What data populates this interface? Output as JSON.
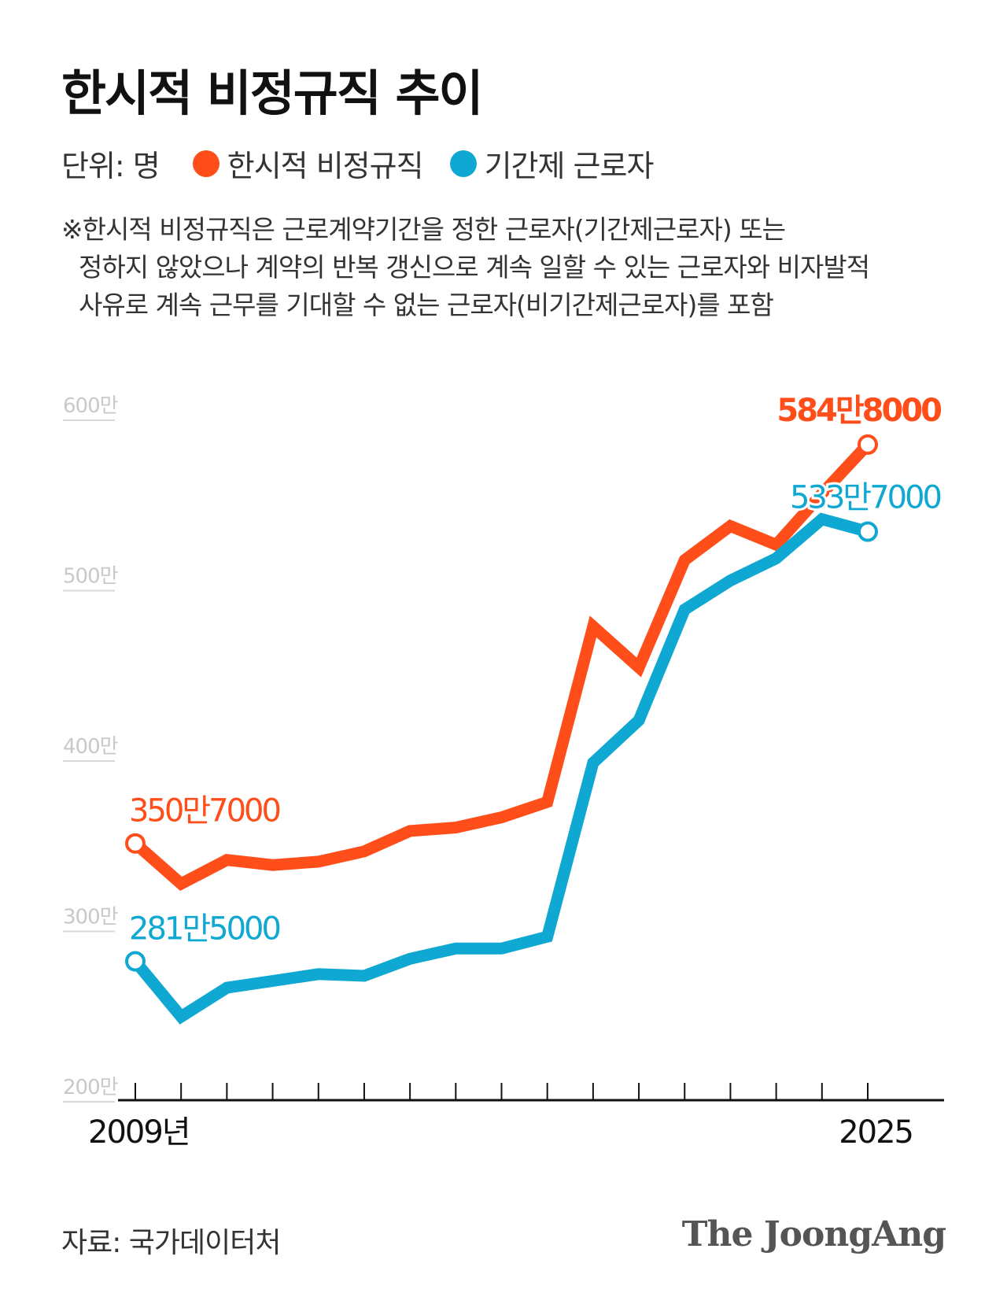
{
  "title": "한시적 비정규직 추이",
  "legend": {
    "unit": "단위: 명",
    "items": [
      {
        "label": "한시적 비정규직",
        "color": "#ff4e1a"
      },
      {
        "label": "기간제 근로자",
        "color": "#0fa8d2"
      }
    ]
  },
  "note": {
    "lines": [
      "※한시적 비정규직은 근로계약기간을 정한 근로자(기간제근로자) 또는",
      "정하지 않았으나 계약의 반복 갱신으로 계속 일할 수 있는 근로자와 비자발적",
      "사유로 계속 근무를 기대할 수 없는 근로자(비기간제근로자)를 포함"
    ]
  },
  "chart_data": {
    "type": "line",
    "x": [
      2009,
      2010,
      2011,
      2012,
      2013,
      2014,
      2015,
      2016,
      2017,
      2018,
      2019,
      2020,
      2021,
      2022,
      2023,
      2024,
      2025
    ],
    "x_tick_labels": {
      "first": "2009년",
      "last": "2025"
    },
    "y_ticks": [
      {
        "value": 2000000,
        "label": "200만"
      },
      {
        "value": 3000000,
        "label": "300만"
      },
      {
        "value": 4000000,
        "label": "400만"
      },
      {
        "value": 5000000,
        "label": "500만"
      },
      {
        "value": 6000000,
        "label": "600만"
      }
    ],
    "ylim": [
      2000000,
      6000000
    ],
    "series": [
      {
        "name": "한시적 비정규직",
        "color": "#ff4e1a",
        "values": [
          3507000,
          3270000,
          3410000,
          3380000,
          3400000,
          3460000,
          3580000,
          3600000,
          3660000,
          3750000,
          4780000,
          4540000,
          5170000,
          5370000,
          5260000,
          5560000,
          5848000
        ],
        "end_labels": {
          "first": "350만7000",
          "last": "584만8000"
        }
      },
      {
        "name": "기간제 근로자",
        "color": "#0fa8d2",
        "values": [
          2815000,
          2490000,
          2660000,
          2700000,
          2740000,
          2730000,
          2830000,
          2890000,
          2890000,
          2960000,
          3980000,
          4230000,
          4880000,
          5050000,
          5180000,
          5410000,
          5337000
        ],
        "end_labels": {
          "first": "281만5000",
          "last": "533만7000"
        }
      }
    ],
    "grid": false,
    "legend_position": "top-left"
  },
  "source": "자료: 국가데이터처",
  "logo": "The JoongAng"
}
